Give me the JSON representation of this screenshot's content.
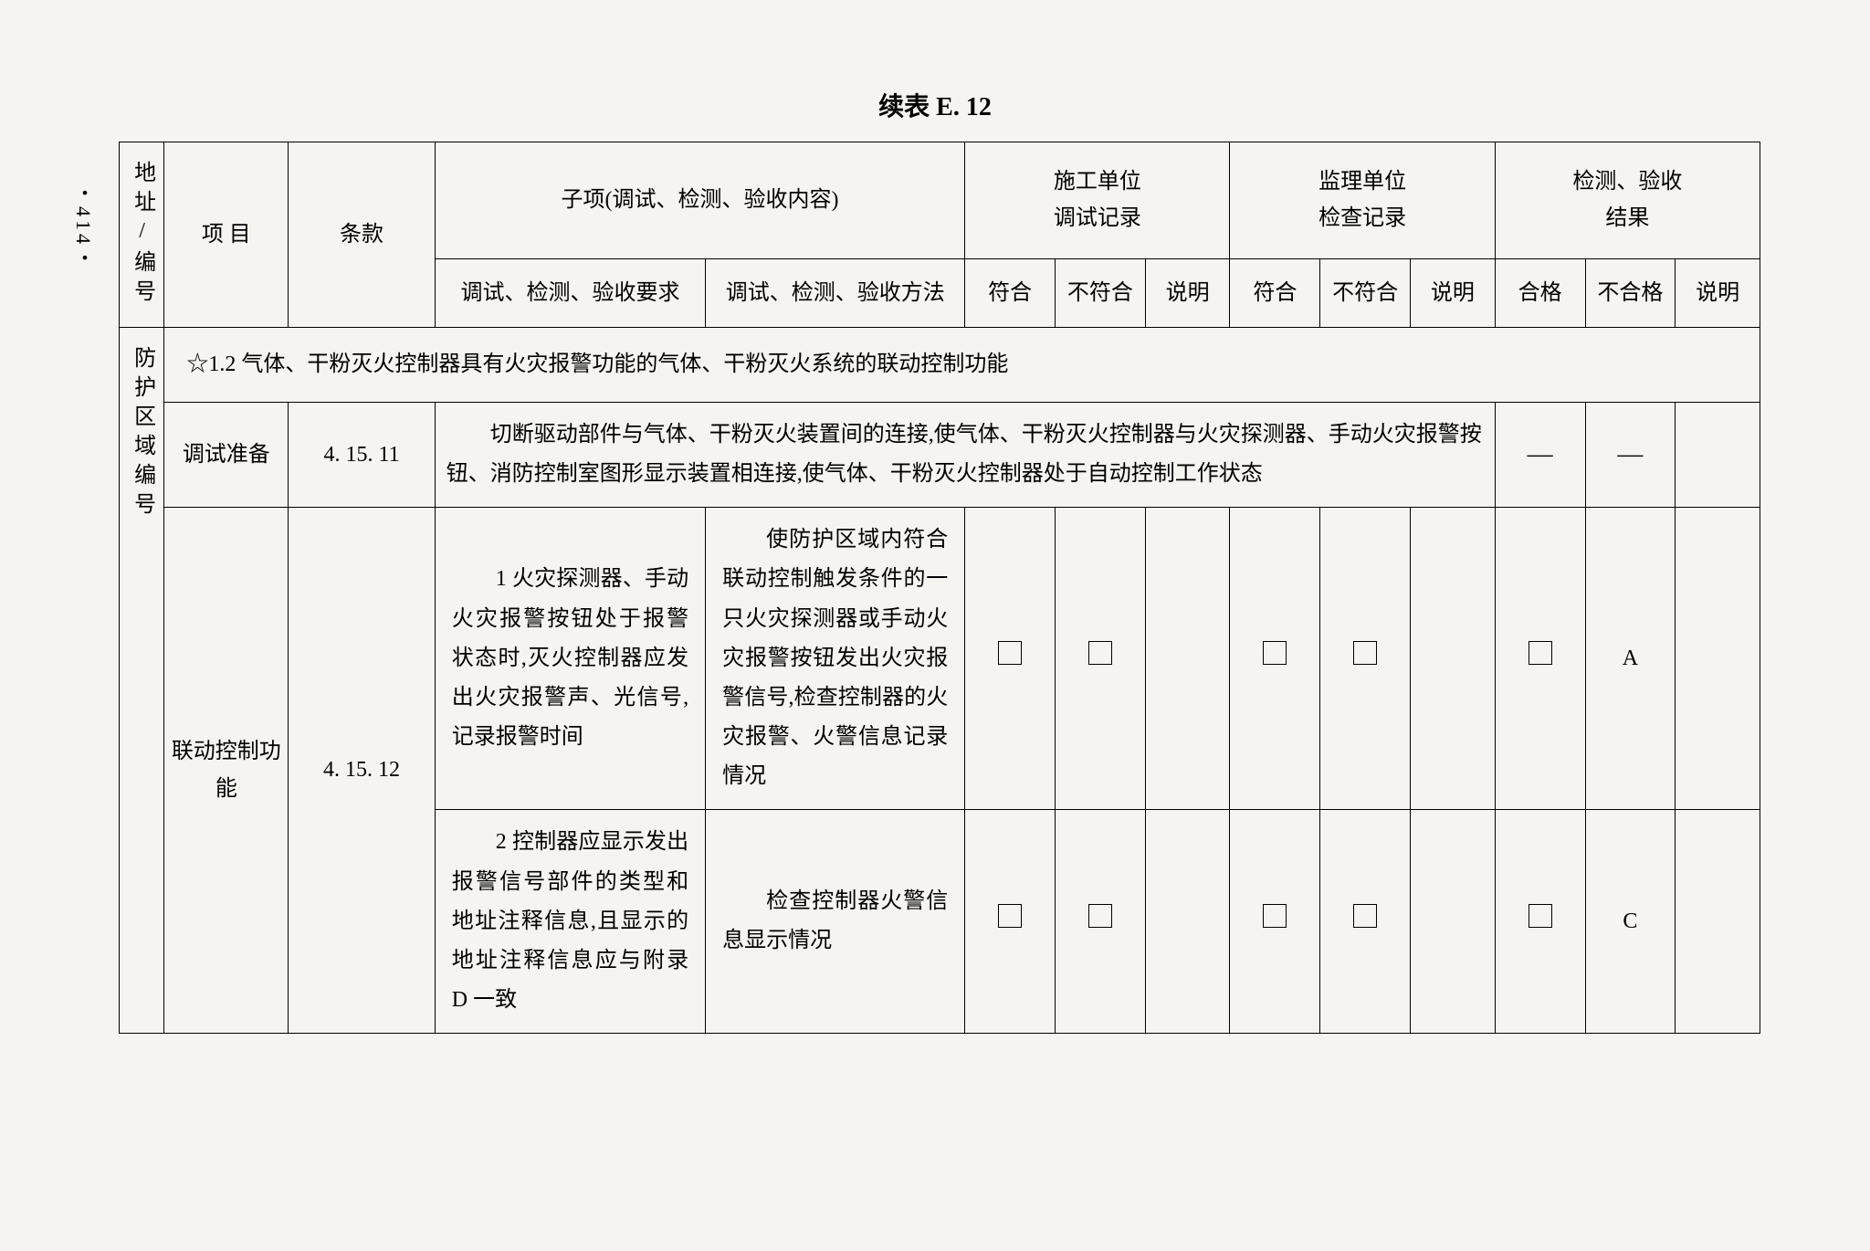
{
  "page_number": "・414・",
  "title": "续表 E. 12",
  "headers": {
    "addr": "地址/编号",
    "project": "项 目",
    "clause": "条款",
    "subitem": "子项(调试、检测、验收内容)",
    "construction": "施工单位\n调试记录",
    "supervision": "监理单位\n检查记录",
    "inspection": "检测、验收\n结果",
    "req": "调试、检测、验收要求",
    "method": "调试、检测、验收方法",
    "conform": "符合",
    "nonconform": "不符合",
    "note": "说明",
    "pass": "合格",
    "fail": "不合格"
  },
  "section_title": "☆1.2 气体、干粉灭火控制器具有火灾报警功能的气体、干粉灭火系统的联动控制功能",
  "row_addr": "防护区域编号",
  "prep": {
    "project": "调试准备",
    "clause": "4. 15. 11",
    "content": "切断驱动部件与气体、干粉灭火装置间的连接,使气体、干粉灭火控制器与火灾探测器、手动火灾报警按钮、消防控制室图形显示装置相连接,使气体、干粉灭火控制器处于自动控制工作状态",
    "dash": "—"
  },
  "linkage": {
    "project": "联动控制功能",
    "clause": "4. 15. 12",
    "row1": {
      "req": "1 火灾探测器、手动火灾报警按钮处于报警状态时,灭火控制器应发出火灾报警声、光信号,记录报警时间",
      "method": "使防护区域内符合联动控制触发条件的一只火灾探测器或手动火灾报警按钮发出火灾报警信号,检查控制器的火灾报警、火警信息记录情况",
      "grade": "A"
    },
    "row2": {
      "req": "2 控制器应显示发出报警信号部件的类型和地址注释信息,且显示的地址注释信息应与附录 D 一致",
      "method": "检查控制器火警信息显示情况",
      "grade": "C"
    }
  }
}
